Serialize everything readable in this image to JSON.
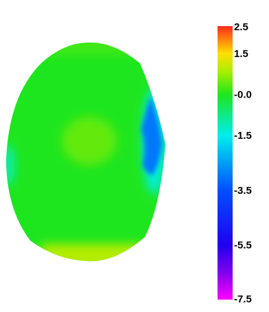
{
  "chart_data": {
    "type": "heatmap",
    "title": "",
    "colorbar": {
      "min": -7.5,
      "max": 2.5,
      "ticks": [
        {
          "value": 2.5,
          "label": "2.5"
        },
        {
          "value": 1.5,
          "label": "1.5"
        },
        {
          "value": 0.0,
          "label": "-0.0"
        },
        {
          "value": -1.5,
          "label": "-1.5"
        },
        {
          "value": -3.5,
          "label": "-3.5"
        },
        {
          "value": -5.5,
          "label": "-5.5"
        },
        {
          "value": -7.5,
          "label": "-7.5"
        }
      ],
      "colors": [
        {
          "value": 2.5,
          "color": "#ff2a1a"
        },
        {
          "value": 1.5,
          "color": "#ffe000"
        },
        {
          "value": 0.8,
          "color": "#a6ee00"
        },
        {
          "value": 0.0,
          "color": "#1ee61e"
        },
        {
          "value": -1.5,
          "color": "#00eeee"
        },
        {
          "value": -3.5,
          "color": "#0050ff"
        },
        {
          "value": -5.5,
          "color": "#2000ee"
        },
        {
          "value": -6.5,
          "color": "#8000ee"
        },
        {
          "value": -7.5,
          "color": "#ff00ff"
        }
      ]
    },
    "map_values": {
      "body": 0.0,
      "top_edge": 0.2,
      "bottom_edge": 0.9,
      "left_edge": -1.0,
      "center": 0.4,
      "right_depression": -3.0,
      "right_rim": -1.5
    }
  }
}
